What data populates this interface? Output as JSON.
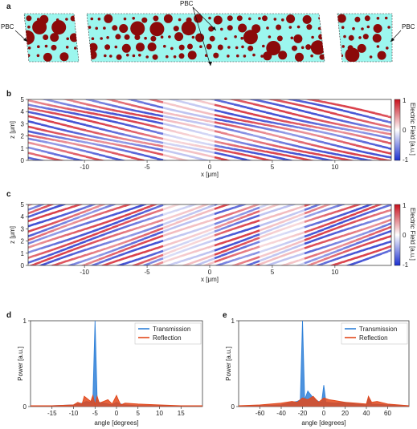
{
  "panels": {
    "a": {
      "label": "a",
      "pbc_left": "PBC",
      "pbc_right": "PBC",
      "pbc_top": "PBC",
      "colors": {
        "background": "#9cf6ee",
        "scatterer": "#8b0a0a"
      }
    },
    "b": {
      "label": "b",
      "xlabel": "x [μm]",
      "ylabel": "z [μm]",
      "x_ticks": [
        "-10",
        "-5",
        "0",
        "5",
        "10"
      ],
      "z_ticks": [
        "0",
        "1",
        "2",
        "3",
        "4",
        "5"
      ],
      "colorbar_label": "Electric Field [a.u.]",
      "colorbar_ticks": [
        "1",
        "0",
        "-1"
      ]
    },
    "c": {
      "label": "c",
      "xlabel": "x [μm]",
      "ylabel": "z [μm]",
      "x_ticks": [
        "-10",
        "-5",
        "0",
        "5",
        "10"
      ],
      "z_ticks": [
        "0",
        "1",
        "2",
        "3",
        "4",
        "5"
      ],
      "colorbar_label": "Electric Field [a.u.]",
      "colorbar_ticks": [
        "1",
        "0",
        "-1"
      ]
    },
    "d": {
      "label": "d"
    },
    "e": {
      "label": "e"
    }
  },
  "colors": {
    "transmission": "#2f80d8",
    "reflection": "#e2491c",
    "field_pos": "#d4202c",
    "field_neg": "#2233cc"
  },
  "chart_data": [
    {
      "type": "line",
      "panel": "d",
      "xlabel": "angle [degrees]",
      "ylabel": "Power [a.u.]",
      "xlim": [
        -20,
        20
      ],
      "ylim": [
        0,
        1
      ],
      "x_ticks": [
        -15,
        -10,
        -5,
        0,
        5,
        10,
        15
      ],
      "y_ticks": [
        0,
        1
      ],
      "legend": "top-right",
      "series": [
        {
          "name": "Transmission",
          "x": [
            -20,
            -15,
            -10,
            -8,
            -7,
            -6,
            -5.5,
            -5,
            -4.5,
            -4,
            -3,
            -2,
            -1,
            0,
            1,
            2,
            5,
            10,
            15,
            20
          ],
          "y": [
            0.01,
            0.01,
            0.02,
            0.04,
            0.06,
            0.05,
            0.08,
            1.0,
            0.08,
            0.05,
            0.04,
            0.03,
            0.02,
            0.05,
            0.03,
            0.02,
            0.01,
            0.01,
            0.01,
            0.01
          ]
        },
        {
          "name": "Reflection",
          "x": [
            -20,
            -15,
            -10,
            -9,
            -8,
            -7.5,
            -6,
            -5.5,
            -5,
            -4.5,
            -4,
            -2,
            -1,
            0,
            0.5,
            1,
            2,
            5,
            10,
            15,
            20
          ],
          "y": [
            0.01,
            0.01,
            0.02,
            0.05,
            0.03,
            0.12,
            0.06,
            0.13,
            0.02,
            0.12,
            0.04,
            0.08,
            0.03,
            0.13,
            0.07,
            0.02,
            0.04,
            0.03,
            0.02,
            0.01,
            0.01
          ]
        }
      ]
    },
    {
      "type": "line",
      "panel": "e",
      "xlabel": "angle [degrees]",
      "ylabel": "Power [a.u.]",
      "xlim": [
        -80,
        80
      ],
      "ylim": [
        0,
        1
      ],
      "x_ticks": [
        -60,
        -40,
        -20,
        0,
        20,
        40,
        60
      ],
      "y_ticks": [
        0,
        1
      ],
      "legend": "top-right",
      "series": [
        {
          "name": "Transmission",
          "x": [
            -80,
            -60,
            -40,
            -30,
            -25,
            -22,
            -20,
            -18,
            -15,
            -10,
            -5,
            -2,
            0,
            2,
            10,
            20,
            30,
            40,
            42,
            45,
            60,
            80
          ],
          "y": [
            0.01,
            0.01,
            0.02,
            0.05,
            0.06,
            0.08,
            1.0,
            0.08,
            0.18,
            0.1,
            0.06,
            0.05,
            0.25,
            0.05,
            0.04,
            0.05,
            0.03,
            0.02,
            0.1,
            0.03,
            0.02,
            0.01
          ]
        },
        {
          "name": "Reflection",
          "x": [
            -80,
            -60,
            -40,
            -30,
            -25,
            -20,
            -15,
            -10,
            -5,
            0,
            5,
            10,
            20,
            30,
            40,
            42,
            45,
            50,
            60,
            80
          ],
          "y": [
            0.01,
            0.02,
            0.04,
            0.06,
            0.05,
            0.1,
            0.08,
            0.12,
            0.05,
            0.1,
            0.08,
            0.07,
            0.05,
            0.04,
            0.03,
            0.12,
            0.05,
            0.06,
            0.03,
            0.01
          ]
        }
      ]
    }
  ]
}
